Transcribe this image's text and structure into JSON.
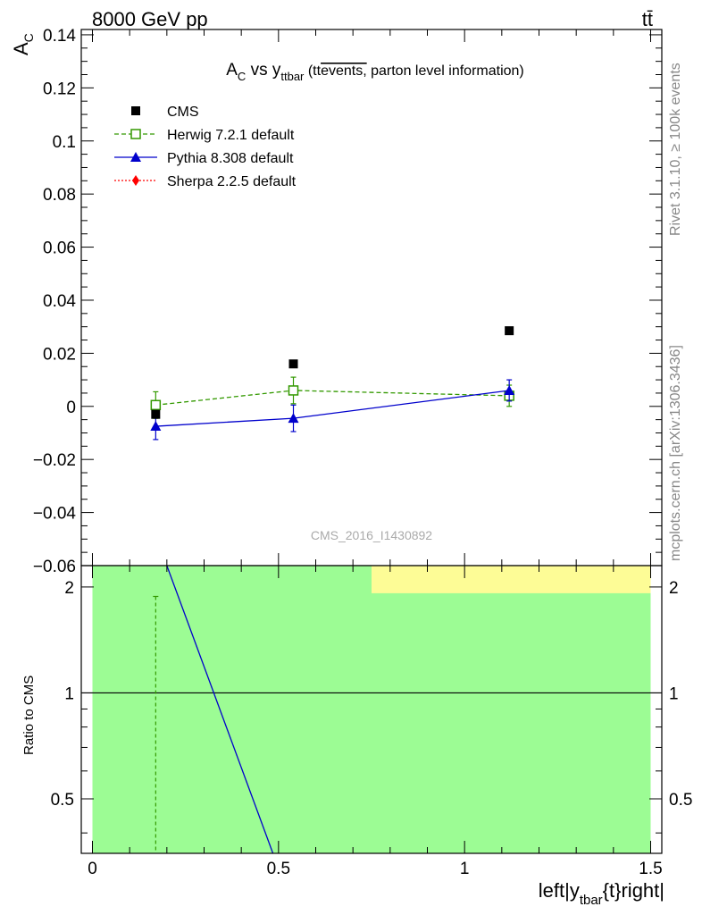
{
  "header": {
    "left_text": "8000 GeV pp",
    "right_text": "tt̄"
  },
  "side_texts": {
    "rivet": "Rivet 3.1.10, ≥ 100k events",
    "mcplots": "mcplots.cern.ch [arXiv:1306.3436]"
  },
  "watermark": "CMS_2016_I1430892",
  "chart_data": [
    {
      "type": "scatter",
      "title": {
        "main": "A",
        "main_sub": "C",
        "vs": " vs y",
        "vs_sub": "ttbar",
        "paren_open": " (tt",
        "overlined": "events,",
        "rest": " parton level information)"
      },
      "ylabel": "A",
      "ylabel_sub": "C",
      "xlim": [
        -0.03,
        1.53
      ],
      "ylim": [
        -0.06,
        0.142
      ],
      "y_ticks": [
        -0.06,
        -0.04,
        -0.02,
        0,
        0.02,
        0.04,
        0.06,
        0.08,
        0.1,
        0.12,
        0.14
      ],
      "y_tick_labels": [
        "−0.06",
        "−0.04",
        "−0.02",
        "0",
        "0.02",
        "0.04",
        "0.06",
        "0.08",
        "0.1",
        "0.12",
        "0.14"
      ],
      "legend_position": "top-left",
      "series": [
        {
          "name": "CMS",
          "color": "#000000",
          "marker": "square-filled",
          "line": "none",
          "points": [
            {
              "x": 0.17,
              "y": -0.003,
              "err": 0.0
            },
            {
              "x": 0.54,
              "y": 0.016,
              "err": 0.0
            },
            {
              "x": 1.12,
              "y": 0.0285,
              "err": 0.0
            }
          ]
        },
        {
          "name": "Herwig 7.2.1 default",
          "color": "#339900",
          "marker": "square-open",
          "line": "dashed",
          "points": [
            {
              "x": 0.17,
              "y": 0.0005,
              "err": 0.005
            },
            {
              "x": 0.54,
              "y": 0.006,
              "err": 0.005
            },
            {
              "x": 1.12,
              "y": 0.004,
              "err": 0.004
            }
          ]
        },
        {
          "name": "Pythia 8.308 default",
          "color": "#0000cc",
          "marker": "triangle-filled",
          "line": "solid",
          "points": [
            {
              "x": 0.17,
              "y": -0.0075,
              "err": 0.005
            },
            {
              "x": 0.54,
              "y": -0.0045,
              "err": 0.005
            },
            {
              "x": 1.12,
              "y": 0.006,
              "err": 0.004
            }
          ]
        },
        {
          "name": "Sherpa 2.2.5 default",
          "color": "#ff0000",
          "marker": "diamond-filled",
          "line": "dotted",
          "points": []
        }
      ]
    },
    {
      "type": "line",
      "ylabel": "Ratio to CMS",
      "ylim": [
        0.35,
        2.3
      ],
      "log_scale": true,
      "xlim": [
        -0.03,
        1.53
      ],
      "x_ticks": [
        0,
        0.5,
        1,
        1.5
      ],
      "x_tick_labels": [
        "0",
        "0.5",
        "1",
        "1.5"
      ],
      "y_ticks": [
        0.5,
        1,
        2
      ],
      "y_tick_labels": [
        "0.5",
        "1",
        "2"
      ],
      "xlabel": {
        "pre": "left|y",
        "sub": "tbar",
        "post": "{t}right|"
      },
      "bands": [
        {
          "x0": 0.0,
          "x1": 1.5,
          "y0": 0.35,
          "y1": 2.3,
          "color": "#9cfc94"
        },
        {
          "x0": 0.75,
          "x1": 1.5,
          "y0": 1.92,
          "y1": 2.3,
          "color": "#fdfc96"
        }
      ],
      "reference_line": 1,
      "herwig_errorbar": {
        "x": 0.17,
        "y_low": 0.35,
        "y_high": 1.88,
        "color": "#339900"
      },
      "pythia_line": {
        "x": [
          0.2,
          0.485
        ],
        "y": [
          2.3,
          0.35
        ],
        "color": "#0000cc"
      }
    }
  ]
}
